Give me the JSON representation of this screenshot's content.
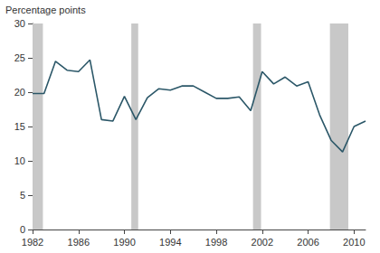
{
  "chart_data": {
    "type": "line",
    "y_label": "Percentage points",
    "x": [
      1982,
      1983,
      1984,
      1985,
      1986,
      1987,
      1988,
      1989,
      1990,
      1991,
      1992,
      1993,
      1994,
      1995,
      1996,
      1997,
      1998,
      1999,
      2000,
      2001,
      2002,
      2003,
      2004,
      2005,
      2006,
      2007,
      2008,
      2009,
      2010,
      2011
    ],
    "values": [
      19.8,
      19.8,
      24.5,
      23.2,
      23.0,
      24.7,
      16.0,
      15.8,
      19.4,
      16.0,
      19.2,
      20.5,
      20.3,
      20.9,
      20.9,
      20.0,
      19.1,
      19.1,
      19.3,
      17.3,
      23.0,
      21.2,
      22.2,
      20.9,
      21.5,
      16.7,
      13.0,
      11.3,
      15.0,
      15.8
    ],
    "color": "#2b5768",
    "recessions": [
      [
        1982,
        1982.9
      ],
      [
        1990.6,
        1991.2
      ],
      [
        2001.2,
        2001.9
      ],
      [
        2007.9,
        2009.5
      ]
    ],
    "recession_color": "#c8c8c8",
    "xlim": [
      1982,
      2011
    ],
    "xticks": [
      1982,
      1986,
      1990,
      1994,
      1998,
      2002,
      2006,
      2010
    ],
    "ylim": [
      0,
      30
    ],
    "yticks": [
      0,
      5,
      10,
      15,
      20,
      25,
      30
    ],
    "grid": false
  }
}
